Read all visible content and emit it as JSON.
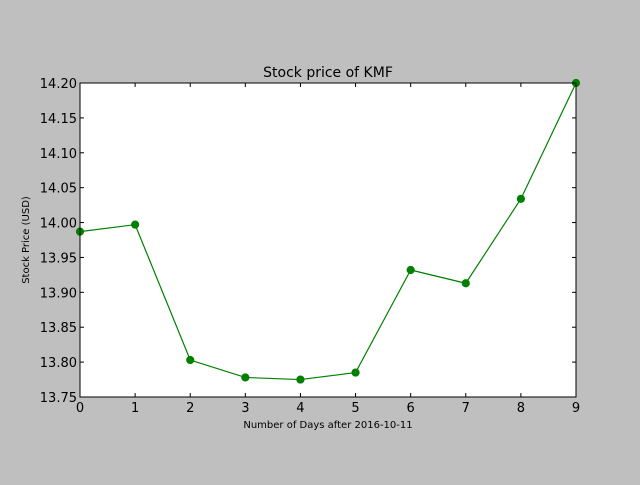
{
  "colors": {
    "figure_background": "#bfbfbf",
    "plot_background": "#ffffff",
    "series": "#008000",
    "axes": "#000000"
  },
  "chart_data": {
    "type": "line",
    "title": "Stock price of KMF",
    "xlabel": "Number of Days after 2016-10-11",
    "ylabel": "Stock Price (USD)",
    "xlim": [
      0,
      9
    ],
    "ylim": [
      13.75,
      14.2
    ],
    "x_ticks": [
      "0",
      "1",
      "2",
      "3",
      "4",
      "5",
      "6",
      "7",
      "8",
      "9"
    ],
    "y_ticks": [
      "13.75",
      "13.80",
      "13.85",
      "13.90",
      "13.95",
      "14.00",
      "14.05",
      "14.10",
      "14.15",
      "14.20"
    ],
    "grid": false,
    "marker": "circle",
    "series": [
      {
        "x": [
          0,
          1,
          2,
          3,
          4,
          5,
          6,
          7,
          8,
          9
        ],
        "y": [
          13.987,
          13.997,
          13.803,
          13.778,
          13.775,
          13.785,
          13.932,
          13.913,
          14.034,
          14.2
        ]
      }
    ]
  }
}
